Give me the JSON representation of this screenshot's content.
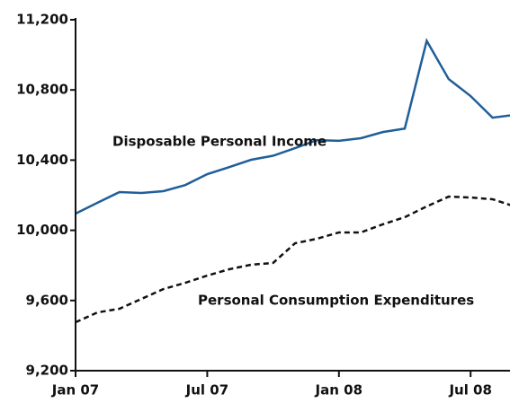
{
  "chart_data": {
    "type": "line",
    "categories": [
      "Jan 07",
      null,
      null,
      null,
      null,
      null,
      "Jul 07",
      null,
      null,
      null,
      null,
      null,
      "Jan 08",
      null,
      null,
      null,
      null,
      null,
      "Jul 08",
      null,
      null
    ],
    "series": [
      {
        "name": "Disposable Personal Income",
        "color": "#1f5f99",
        "dash": false,
        "values": [
          10095,
          10157,
          10218,
          10213,
          10223,
          10258,
          10320,
          10360,
          10402,
          10425,
          10468,
          10514,
          10510,
          10525,
          10560,
          10580,
          11080,
          10862,
          10765,
          10642,
          10658
        ]
      },
      {
        "name": "Personal Consumption Expenditures",
        "color": "#111111",
        "dash": true,
        "values": [
          9476,
          9532,
          9553,
          9609,
          9665,
          9701,
          9742,
          9778,
          9804,
          9814,
          9926,
          9952,
          9988,
          9988,
          10034,
          10075,
          10136,
          10192,
          10187,
          10177,
          10136
        ]
      }
    ],
    "ylim": [
      9200,
      11200
    ],
    "yticks": [
      {
        "value": 9200,
        "label": "9,200"
      },
      {
        "value": 9600,
        "label": "9,600"
      },
      {
        "value": 10000,
        "label": "10,000"
      },
      {
        "value": 10400,
        "label": "10,400"
      },
      {
        "value": 10800,
        "label": "10,800"
      },
      {
        "value": 11200,
        "label": "11,200"
      }
    ]
  }
}
